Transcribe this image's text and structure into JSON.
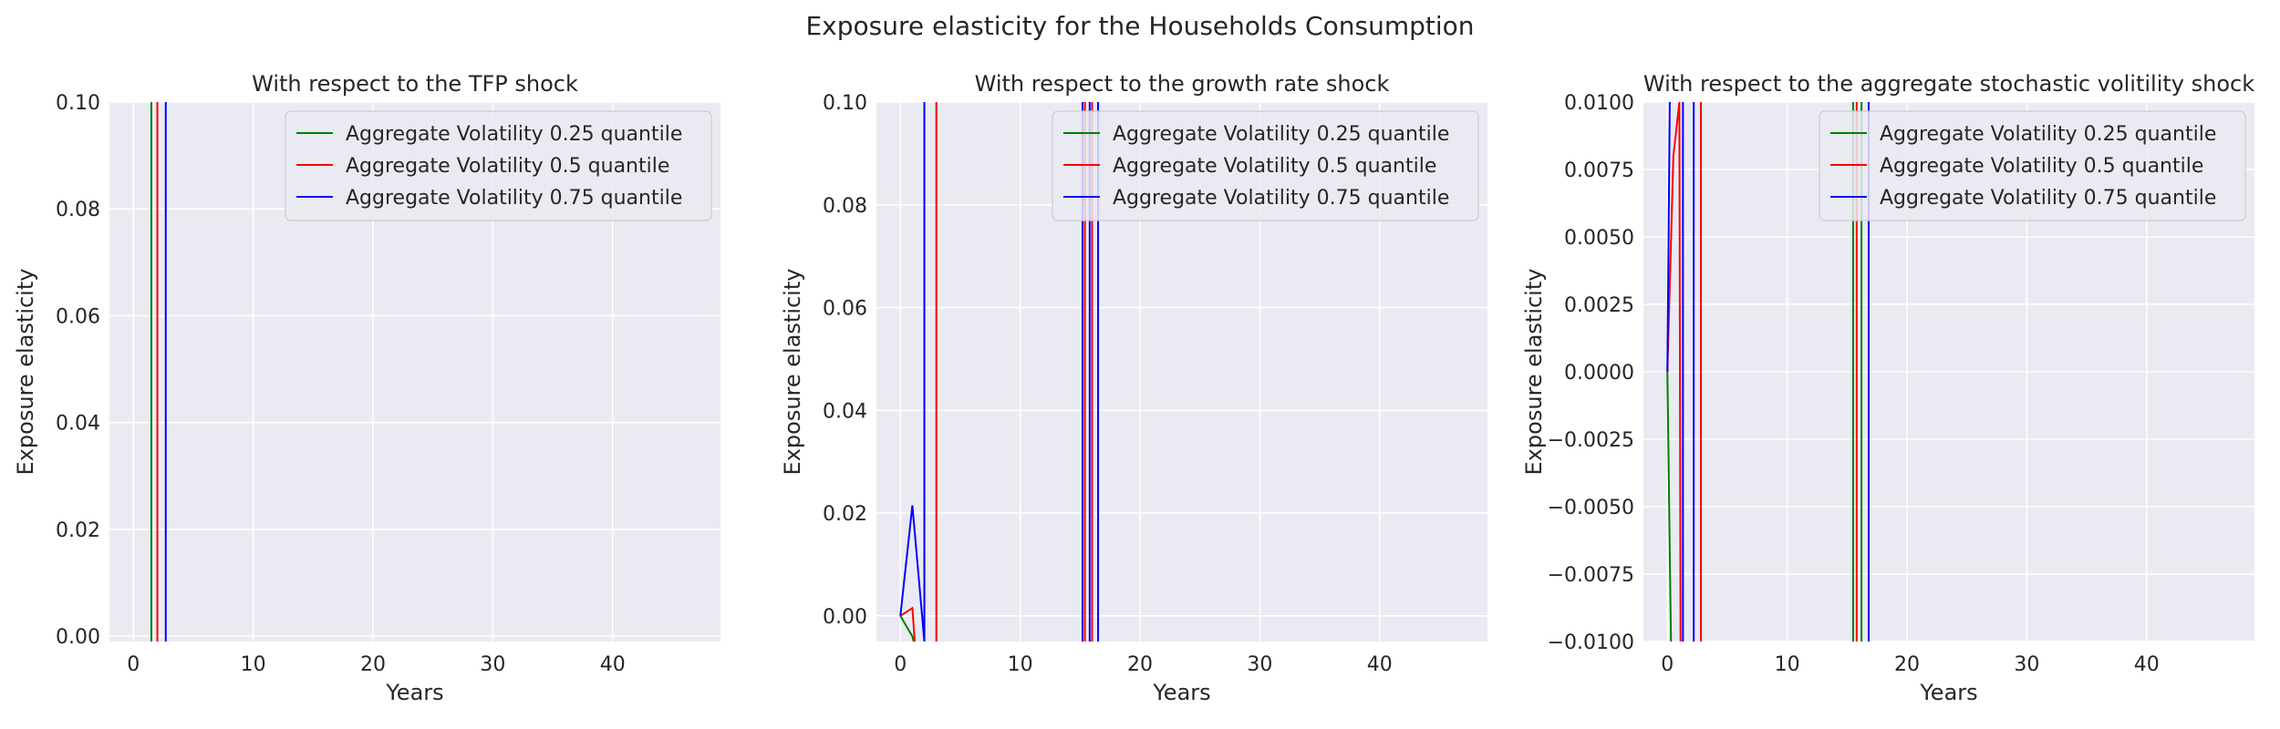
{
  "figure": {
    "title": "Exposure elasticity for the Households Consumption"
  },
  "style": {
    "axes_bg": "#eaeaf2",
    "grid": "#ffffff",
    "text": "#262626"
  },
  "chart_data": [
    {
      "type": "line",
      "title": "With respect to the TFP shock",
      "xlabel": "Years",
      "ylabel": "Exposure elasticity",
      "xlim": [
        -2,
        49
      ],
      "ylim": [
        -0.001,
        0.1
      ],
      "xticks": [
        0,
        10,
        20,
        30,
        40
      ],
      "yticks": [
        0.0,
        0.02,
        0.04,
        0.06,
        0.08,
        0.1
      ],
      "ytick_labels": [
        "0.00",
        "0.02",
        "0.04",
        "0.06",
        "0.08",
        "0.10"
      ],
      "grid": true,
      "legend_position": "upper right",
      "series": [
        {
          "name": "Aggregate Volatility 0.25 quantile",
          "color": "#008000",
          "x": [
            1.5,
            1.5
          ],
          "y": [
            -0.001,
            0.1
          ]
        },
        {
          "name": "Aggregate Volatility 0.5 quantile",
          "color": "#ff0000",
          "x": [
            2,
            2
          ],
          "y": [
            -0.001,
            0.1
          ]
        },
        {
          "name": "Aggregate Volatility 0.75 quantile",
          "color": "#0000ff",
          "x": [
            2.7,
            2.7
          ],
          "y": [
            -0.001,
            0.1
          ]
        }
      ]
    },
    {
      "type": "line",
      "title": "With respect to the growth rate shock",
      "xlabel": "Years",
      "ylabel": "Exposure elasticity",
      "xlim": [
        -2,
        49
      ],
      "ylim": [
        -0.005,
        0.1
      ],
      "xticks": [
        0,
        10,
        20,
        30,
        40
      ],
      "yticks": [
        0.0,
        0.02,
        0.04,
        0.06,
        0.08,
        0.1
      ],
      "ytick_labels": [
        "0.00",
        "0.02",
        "0.04",
        "0.06",
        "0.08",
        "0.10"
      ],
      "grid": true,
      "legend_position": "upper right",
      "series": [
        {
          "name": "Aggregate Volatility 0.25 quantile",
          "color": "#008000",
          "x": [
            0,
            1,
            1.1
          ],
          "y": [
            0.0,
            -0.004,
            -0.005
          ]
        },
        {
          "name": "Aggregate Volatility 0.5 quantile",
          "color": "#ff0000",
          "x": [
            0,
            1,
            1.2,
            null,
            3,
            3,
            null,
            15.4,
            15.4,
            null,
            16,
            16
          ],
          "y": [
            0.0,
            0.0015,
            -0.005,
            null,
            -0.005,
            0.1,
            null,
            -0.005,
            0.1,
            null,
            -0.005,
            0.1
          ]
        },
        {
          "name": "Aggregate Volatility 0.75 quantile",
          "color": "#0000ff",
          "x": [
            0,
            1,
            2,
            2,
            null,
            15.2,
            15.2,
            null,
            15.8,
            15.8,
            null,
            16.5,
            16.5
          ],
          "y": [
            0.0,
            0.0215,
            -0.005,
            0.1,
            null,
            -0.005,
            0.1,
            null,
            -0.005,
            0.1,
            null,
            -0.005,
            0.1
          ]
        }
      ]
    },
    {
      "type": "line",
      "title": "With respect to the aggregate stochastic volitility shock",
      "xlabel": "Years",
      "ylabel": "Exposure elasticity",
      "xlim": [
        -2,
        49
      ],
      "ylim": [
        -0.01,
        0.01
      ],
      "xticks": [
        0,
        10,
        20,
        30,
        40
      ],
      "yticks": [
        -0.01,
        -0.0075,
        -0.005,
        -0.0025,
        0.0,
        0.0025,
        0.005,
        0.0075,
        0.01
      ],
      "ytick_labels": [
        "−0.0100",
        "−0.0075",
        "−0.0050",
        "−0.0025",
        "0.0000",
        "0.0025",
        "0.0050",
        "0.0075",
        "0.0100"
      ],
      "grid": true,
      "legend_position": "upper right",
      "series": [
        {
          "name": "Aggregate Volatility 0.25 quantile",
          "color": "#008000",
          "x": [
            0,
            0.3,
            null,
            15.5,
            15.5,
            null,
            16.2,
            16.2
          ],
          "y": [
            0.0,
            -0.01,
            null,
            -0.01,
            0.01,
            null,
            -0.01,
            0.01
          ]
        },
        {
          "name": "Aggregate Volatility 0.5 quantile",
          "color": "#ff0000",
          "x": [
            0,
            0.5,
            1,
            1.1,
            null,
            2.8,
            2.8,
            null,
            15.8,
            15.8
          ],
          "y": [
            0.0,
            0.008,
            0.01,
            -0.01,
            null,
            -0.01,
            0.01,
            null,
            -0.01,
            0.01
          ]
        },
        {
          "name": "Aggregate Volatility 0.75 quantile",
          "color": "#0000ff",
          "x": [
            0,
            0.2,
            null,
            1.3,
            1.3,
            null,
            2.2,
            2.2,
            null,
            16.8,
            16.8
          ],
          "y": [
            0.0,
            0.01,
            null,
            -0.01,
            0.01,
            null,
            -0.01,
            0.01,
            null,
            -0.01,
            0.01
          ]
        }
      ]
    }
  ]
}
